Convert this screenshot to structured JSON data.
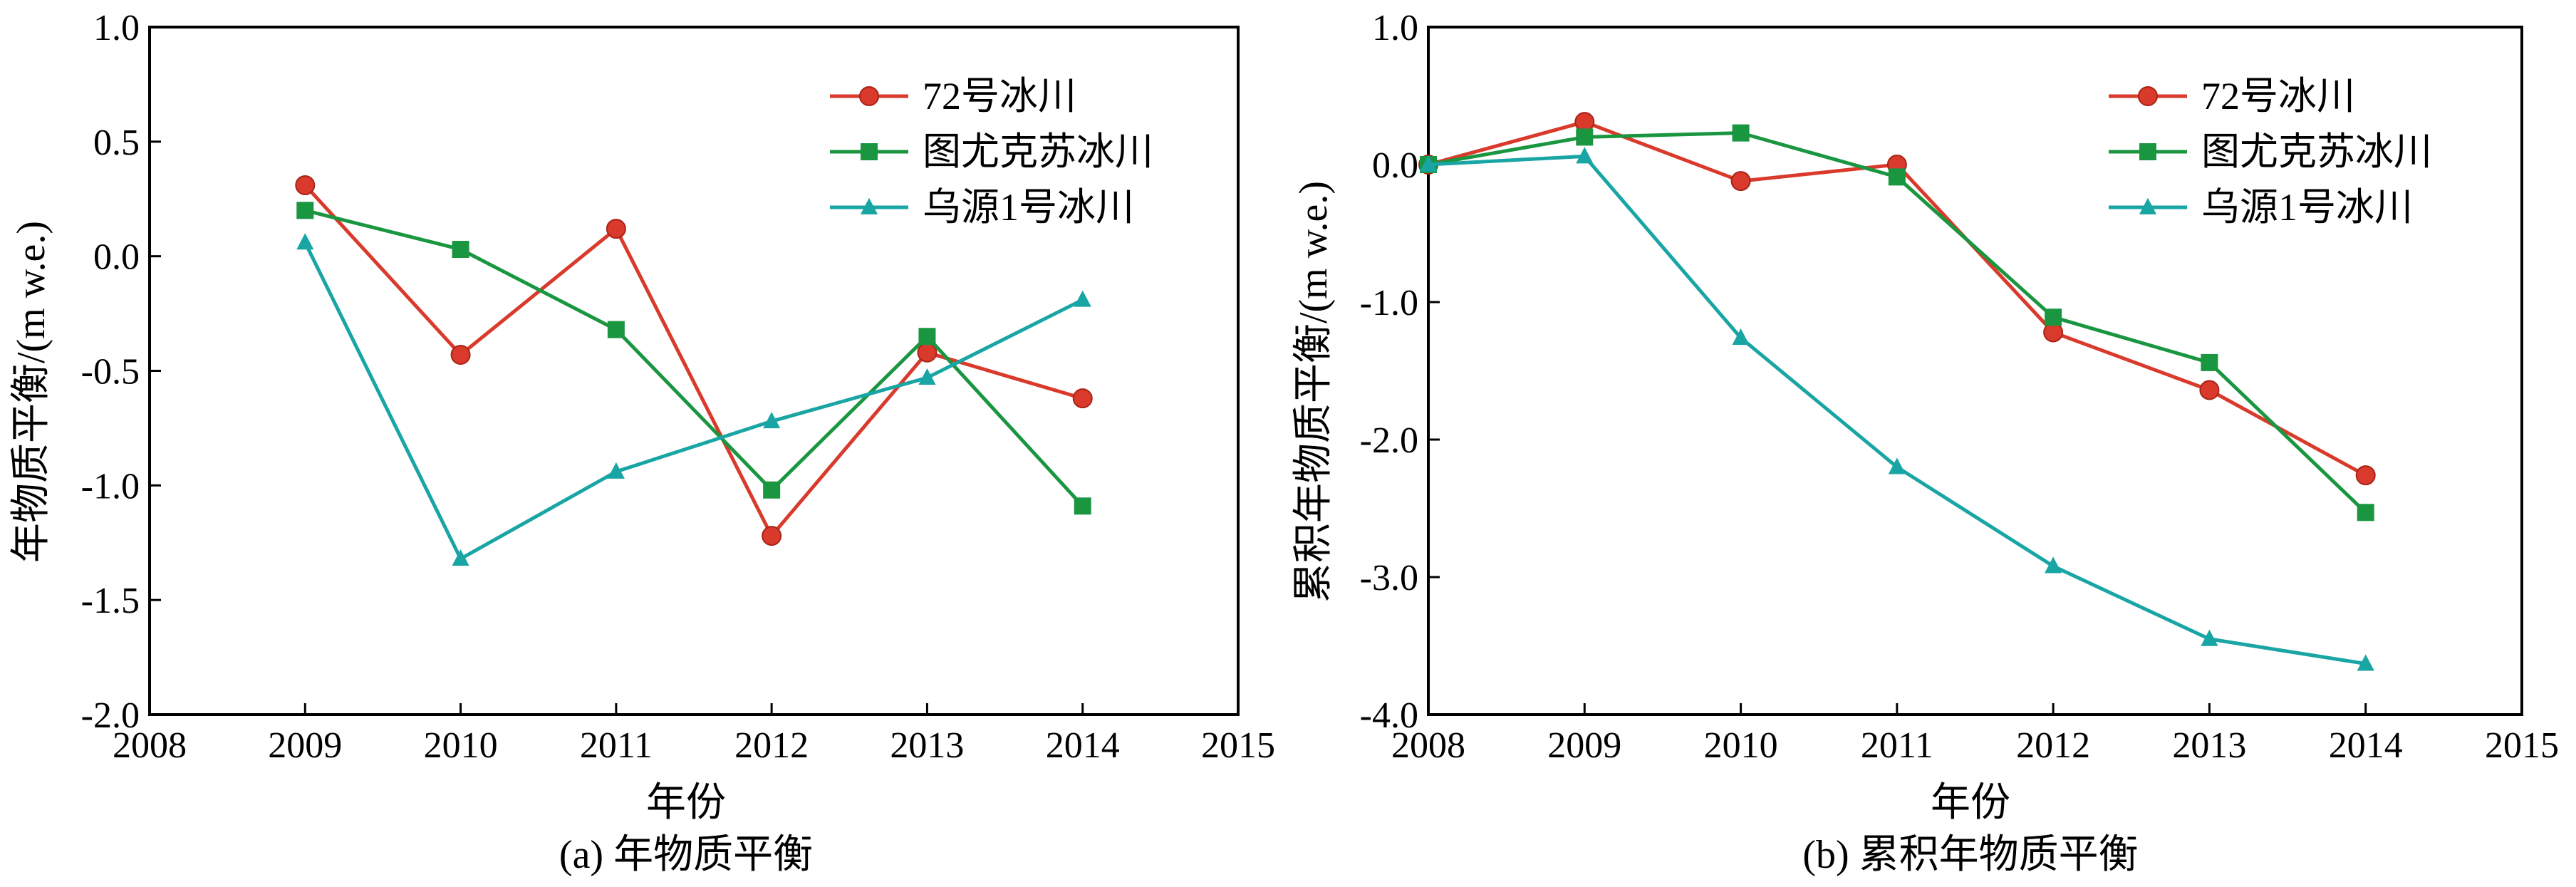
{
  "chart_data": [
    {
      "id": "a",
      "type": "line",
      "title": "",
      "caption": "(a) 年物质平衡",
      "xlabel": "年份",
      "ylabel": "年物质平衡/(m w.e.)",
      "xlim": [
        2008,
        2015
      ],
      "ylim": [
        -2.0,
        1.0
      ],
      "xticks": [
        "2008",
        "2009",
        "2010",
        "2011",
        "2012",
        "2013",
        "2014",
        "2015"
      ],
      "yticks": [
        "1.0",
        "0.5",
        "0.0",
        "-0.5",
        "-1.0",
        "-1.5",
        "-2.0"
      ],
      "legend_position": "top-right",
      "grid": false,
      "x": [
        2009,
        2010,
        2011,
        2012,
        2013,
        2014
      ],
      "series": [
        {
          "name": "72号冰川",
          "color": "#d93a2b",
          "marker": "circle",
          "values": [
            0.31,
            -0.43,
            0.12,
            -1.22,
            -0.42,
            -0.62
          ]
        },
        {
          "name": "图尤克苏冰川",
          "color": "#1a9641",
          "marker": "square",
          "values": [
            0.2,
            0.03,
            -0.32,
            -1.02,
            -0.35,
            -1.09
          ]
        },
        {
          "name": "乌源1号冰川",
          "color": "#1aa5a5",
          "marker": "triangle",
          "values": [
            0.06,
            -1.32,
            -0.94,
            -0.72,
            -0.53,
            -0.19
          ]
        }
      ]
    },
    {
      "id": "b",
      "type": "line",
      "title": "",
      "caption": "(b) 累积年物质平衡",
      "xlabel": "年份",
      "ylabel": "累积年物质平衡/(m w.e.)",
      "xlim": [
        2008,
        2015
      ],
      "ylim": [
        -4.0,
        1.0
      ],
      "xticks": [
        "2008",
        "2009",
        "2010",
        "2011",
        "2012",
        "2013",
        "2014",
        "2015"
      ],
      "yticks": [
        "1.0",
        "0.0",
        "-1.0",
        "-2.0",
        "-3.0",
        "-4.0"
      ],
      "legend_position": "top-right",
      "grid": false,
      "x": [
        2008,
        2009,
        2010,
        2011,
        2012,
        2013,
        2014
      ],
      "series": [
        {
          "name": "72号冰川",
          "color": "#d93a2b",
          "marker": "circle",
          "values": [
            0.0,
            0.31,
            -0.12,
            0.0,
            -1.22,
            -1.64,
            -2.26
          ]
        },
        {
          "name": "图尤克苏冰川",
          "color": "#1a9641",
          "marker": "square",
          "values": [
            0.0,
            0.2,
            0.23,
            -0.09,
            -1.11,
            -1.44,
            -2.53
          ]
        },
        {
          "name": "乌源1号冰川",
          "color": "#1aa5a5",
          "marker": "triangle",
          "values": [
            0.0,
            0.06,
            -1.26,
            -2.2,
            -2.92,
            -3.45,
            -3.63
          ]
        }
      ]
    }
  ]
}
